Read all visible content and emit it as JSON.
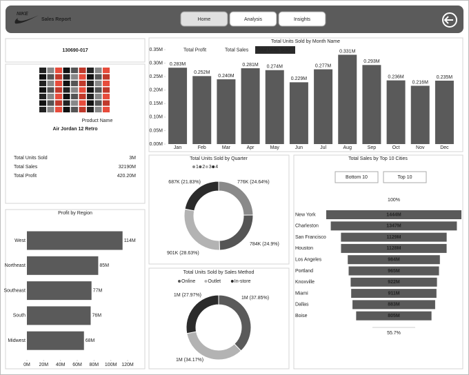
{
  "header": {
    "logo": "NIKE",
    "title": "Sales Report",
    "nav": [
      "Home",
      "Analysis",
      "Insights"
    ]
  },
  "product": {
    "id": "130690-017",
    "name_label": "Product Name",
    "name": "Air Jordan 12 Retro"
  },
  "kpis": [
    {
      "label": "Total Units Sold",
      "value": "3M"
    },
    {
      "label": "Total Sales",
      "value": "32190M"
    },
    {
      "label": "Total Profit",
      "value": "420.20M"
    }
  ],
  "chart_data": [
    {
      "type": "bar",
      "title": "Total Units Sold by Month Name",
      "buttons": [
        "Total Profit",
        "Total Sales",
        "Total Units Sold"
      ],
      "color": "#5a5a5a",
      "categories": [
        "Jan",
        "Feb",
        "Mar",
        "Apr",
        "May",
        "Jun",
        "Jul",
        "Aug",
        "Sep",
        "Oct",
        "Nov",
        "Dec"
      ],
      "values": [
        0.283,
        0.252,
        0.24,
        0.281,
        0.274,
        0.229,
        0.277,
        0.331,
        0.293,
        0.236,
        0.216,
        0.235
      ],
      "value_labels": [
        "0.283M",
        "0.252M",
        "0.240M",
        "0.281M",
        "0.274M",
        "0.229M",
        "0.277M",
        "0.331M",
        "0.293M",
        "0.236M",
        "0.216M",
        "0.235M"
      ],
      "ylim": [
        0,
        0.35
      ],
      "yticks": [
        {
          "value": 0,
          "label": "0.00M"
        },
        {
          "value": 0.05,
          "label": "0.05M"
        },
        {
          "value": 0.1,
          "label": "0.10M"
        },
        {
          "value": 0.15,
          "label": "0.15M"
        },
        {
          "value": 0.2,
          "label": "0.20M"
        },
        {
          "value": 0.25,
          "label": "0.25M"
        },
        {
          "value": 0.3,
          "label": "0.30M"
        },
        {
          "value": 0.35,
          "label": "0.35M"
        }
      ]
    },
    {
      "type": "donut",
      "title": "Total Units Sold by Quarter",
      "categories": [
        "1",
        "2",
        "3",
        "4"
      ],
      "colors": [
        "#8a8a8a",
        "#555555",
        "#b3b3b3",
        "#2b2b2b"
      ],
      "values": [
        24.64,
        24.9,
        28.63,
        21.83
      ],
      "value_labels": [
        "776K (24.64%)",
        "784K (24.9%)",
        "901K (28.63%)",
        "687K (21.83%)"
      ]
    },
    {
      "type": "donut",
      "title": "Total Units Sold by Sales Method",
      "categories": [
        "Online",
        "Outlet",
        "In-store"
      ],
      "colors": [
        "#5a5a5a",
        "#b3b3b3",
        "#2b2b2b"
      ],
      "values": [
        37.85,
        34.17,
        27.97
      ],
      "value_labels": [
        "1M (37.85%)",
        "1M (34.17%)",
        "1M (27.97%)"
      ]
    },
    {
      "type": "funnel",
      "title": "Total Sales by Top 10 Cities",
      "buttons": [
        "Bottom 10",
        "Top 10"
      ],
      "top_label": "100%",
      "bottom_label": "55.7%",
      "color": "#5a5a5a",
      "categories": [
        "New York",
        "Charleston",
        "San Francisco",
        "Houston",
        "Los Angeles",
        "Portland",
        "Knoxville",
        "Miami",
        "Dallas",
        "Boise"
      ],
      "values": [
        1444,
        1347,
        1129,
        1128,
        984,
        965,
        922,
        911,
        883,
        805
      ],
      "value_labels": [
        "1444M",
        "1347M",
        "1129M",
        "1128M",
        "984M",
        "965M",
        "922M",
        "911M",
        "883M",
        "805M"
      ]
    },
    {
      "type": "hbar",
      "title": "Profit by Region",
      "color": "#5a5a5a",
      "categories": [
        "West",
        "Northeast",
        "Southeast",
        "South",
        "Midwest"
      ],
      "values": [
        114,
        85,
        77,
        76,
        68
      ],
      "value_labels": [
        "114M",
        "85M",
        "77M",
        "76M",
        "68M"
      ],
      "xlim": [
        0,
        120
      ],
      "xticks": [
        {
          "value": 0,
          "label": "0M"
        },
        {
          "value": 20,
          "label": "20M"
        },
        {
          "value": 40,
          "label": "40M"
        },
        {
          "value": 60,
          "label": "60M"
        },
        {
          "value": 80,
          "label": "80M"
        },
        {
          "value": 100,
          "label": "100M"
        },
        {
          "value": 120,
          "label": "120M"
        }
      ]
    }
  ]
}
